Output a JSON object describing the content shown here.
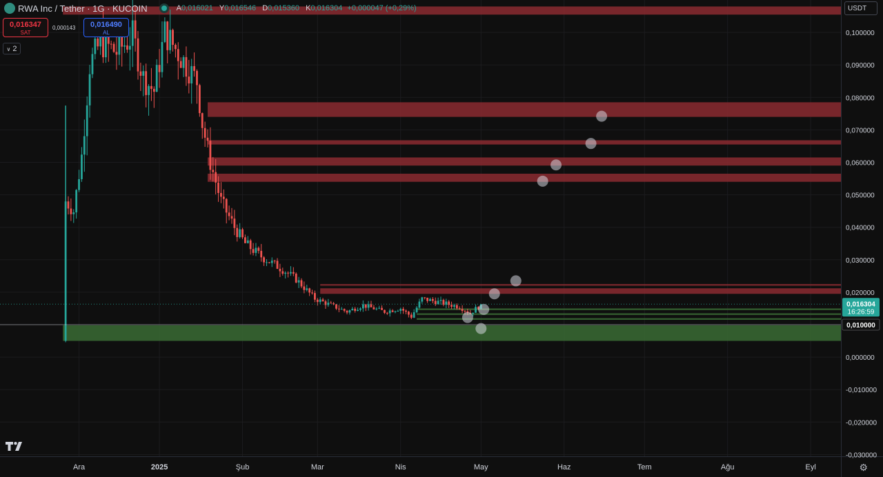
{
  "header": {
    "symbol": "RWA Inc / Tether · 1G · KUCOIN",
    "open_label": "A",
    "open": "0,016021",
    "high_label": "Y",
    "high": "0,016546",
    "low_label": "D",
    "low": "0,015360",
    "close_label": "K",
    "close": "0,016304",
    "change": "+0,000047 (+0,29%)"
  },
  "trade": {
    "sell_price": "0,016347",
    "sell_label": "SAT",
    "spread": "0,000143",
    "buy_price": "0,016490",
    "buy_label": "AL"
  },
  "indicators_count": "2",
  "currency": "USDT",
  "colors": {
    "up": "#26a69a",
    "down": "#ef5350",
    "zone_red": "#8b2a30",
    "zone_green": "#3a6b34"
  },
  "chart_data": {
    "type": "candlestick",
    "ylim": [
      -0.03,
      0.105
    ],
    "y_ticks": [
      "0,100000",
      "0,090000",
      "0,080000",
      "0,070000",
      "0,060000",
      "0,050000",
      "0,040000",
      "0,030000",
      "0,020000",
      "0,010000",
      "0,000000",
      "-0,010000",
      "-0,020000",
      "-0,030000"
    ],
    "y_tick_values": [
      0.1,
      0.09,
      0.08,
      0.07,
      0.06,
      0.05,
      0.04,
      0.03,
      0.02,
      0.01,
      0.0,
      -0.01,
      -0.02,
      -0.03
    ],
    "x_ticks": [
      "Ara",
      "2025",
      "Şub",
      "Mar",
      "Nis",
      "May",
      "Haz",
      "Tem",
      "Ağu",
      "Eyl"
    ],
    "x_tick_days": [
      4,
      34,
      65,
      93,
      124,
      154,
      185,
      215,
      246,
      277
    ],
    "last_price": "0,016304",
    "last_price_value": 0.016304,
    "countdown": "16:26:59",
    "highlight_price": "0,010000",
    "highlight_value": 0.01,
    "zones": [
      {
        "color": "red",
        "start_day": 52,
        "top": 0.0785,
        "bottom": 0.074
      },
      {
        "color": "red",
        "start_day": 52,
        "top": 0.0668,
        "bottom": 0.0655
      },
      {
        "color": "red",
        "start_day": 52,
        "top": 0.0615,
        "bottom": 0.059
      },
      {
        "color": "red",
        "start_day": 52,
        "top": 0.0565,
        "bottom": 0.054
      },
      {
        "color": "red",
        "start_day": -2,
        "top": 0.108,
        "bottom": 0.1055
      },
      {
        "color": "red",
        "start_day": 94,
        "top": 0.0225,
        "bottom": 0.022
      },
      {
        "color": "red",
        "start_day": 94,
        "top": 0.0212,
        "bottom": 0.0195
      },
      {
        "color": "green",
        "start_day": 130,
        "top": 0.015,
        "bottom": 0.0145
      },
      {
        "color": "green",
        "start_day": 130,
        "top": 0.0135,
        "bottom": 0.013
      },
      {
        "color": "green",
        "start_day": 130,
        "top": 0.012,
        "bottom": 0.0115
      },
      {
        "color": "green",
        "start_day": -2,
        "top": 0.0098,
        "bottom": 0.005
      }
    ],
    "points": [
      {
        "day": 149,
        "value": 0.0122
      },
      {
        "day": 154,
        "value": 0.0088
      },
      {
        "day": 155,
        "value": 0.0147
      },
      {
        "day": 159,
        "value": 0.0195
      },
      {
        "day": 167,
        "value": 0.0235
      },
      {
        "day": 177,
        "value": 0.0542
      },
      {
        "day": 182,
        "value": 0.0592
      },
      {
        "day": 195,
        "value": 0.0658
      },
      {
        "day": 199,
        "value": 0.0742
      }
    ],
    "candles_keypoints": [
      {
        "day": -2,
        "value": 0.005
      },
      {
        "day": -1,
        "value": 0.048
      },
      {
        "day": 2,
        "value": 0.045
      },
      {
        "day": 5,
        "value": 0.062
      },
      {
        "day": 8,
        "value": 0.09
      },
      {
        "day": 12,
        "value": 0.097
      },
      {
        "day": 18,
        "value": 0.094
      },
      {
        "day": 24,
        "value": 0.099
      },
      {
        "day": 28,
        "value": 0.086
      },
      {
        "day": 32,
        "value": 0.082
      },
      {
        "day": 36,
        "value": 0.1
      },
      {
        "day": 40,
        "value": 0.095
      },
      {
        "day": 44,
        "value": 0.09
      },
      {
        "day": 48,
        "value": 0.085
      },
      {
        "day": 50,
        "value": 0.072
      },
      {
        "day": 53,
        "value": 0.06
      },
      {
        "day": 57,
        "value": 0.048
      },
      {
        "day": 62,
        "value": 0.04
      },
      {
        "day": 66,
        "value": 0.035
      },
      {
        "day": 72,
        "value": 0.031
      },
      {
        "day": 80,
        "value": 0.027
      },
      {
        "day": 85,
        "value": 0.024
      },
      {
        "day": 92,
        "value": 0.018
      },
      {
        "day": 98,
        "value": 0.016
      },
      {
        "day": 104,
        "value": 0.014
      },
      {
        "day": 110,
        "value": 0.016
      },
      {
        "day": 118,
        "value": 0.014
      },
      {
        "day": 124,
        "value": 0.015
      },
      {
        "day": 128,
        "value": 0.0125
      },
      {
        "day": 132,
        "value": 0.018
      },
      {
        "day": 138,
        "value": 0.017
      },
      {
        "day": 146,
        "value": 0.0155
      },
      {
        "day": 150,
        "value": 0.0135
      },
      {
        "day": 154,
        "value": 0.0163
      }
    ]
  }
}
